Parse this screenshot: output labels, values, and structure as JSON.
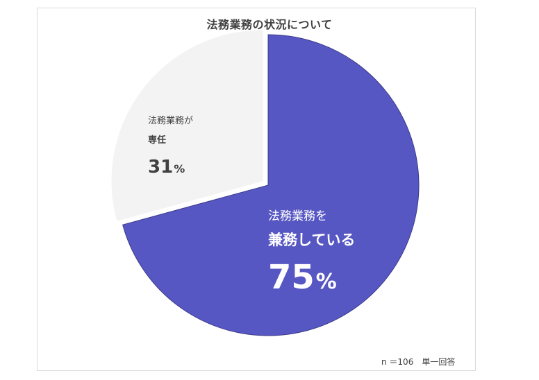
{
  "chart_data": {
    "type": "pie",
    "title": "法務業務の状況について",
    "slices": [
      {
        "label_line1": "法務業務を",
        "label_line2": "兼務している",
        "value": 75,
        "value_text": "75",
        "unit": "%",
        "color": "#5757c4",
        "text_color": "#ffffff"
      },
      {
        "label_line1": "法務業務が",
        "label_line2": "専任",
        "value": 31,
        "value_text": "31",
        "unit": "%",
        "color": "#f3f3f3",
        "text_color": "#404040"
      }
    ],
    "note": "n ＝106　単一回答",
    "legend": "none"
  }
}
